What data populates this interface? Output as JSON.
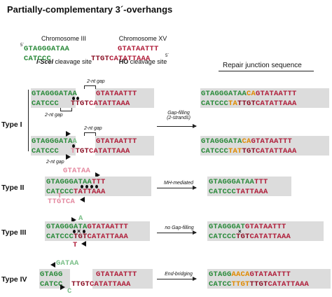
{
  "title": "Partially-complementary 3´-overhangs",
  "header": {
    "chrom3": "Chromosome III",
    "chrom3_site_name": "I-SceI",
    "chrom3_site_rest": " cleavage site",
    "chrom15": "Chromosome XV",
    "chrom15_site_name": "HO",
    "chrom15_site_rest": " cleavage site",
    "five_prime": "5´",
    "five_prime_b": "5´",
    "top_g": "GTAGGG",
    "top_gb": "ATAA",
    "top_r": "GTATAATTT",
    "bot_g": "CATCCC",
    "bot_rb": "TTGT",
    "bot_r": "CATATTAAA"
  },
  "repair_junction_label": "Repair junction sequence",
  "types": {
    "type1": "Type I",
    "type2": "Type II",
    "type3": "Type III",
    "type4": "Type IV"
  },
  "gap_labels": {
    "gap_a": "2-nt gap",
    "gap_b": "2-nt gap",
    "gap_c": "2-nt gap",
    "gap_d": "2-nt gap"
  },
  "arrows": {
    "type1": "Gap-filling\n(2-strands)",
    "type2": "MH-mediated",
    "type3": "no Gap-filling",
    "type4": "End-bridging"
  },
  "seq": {
    "t1a_top_g": "GTAGGG",
    "t1a_top_gb": "ATAA",
    "t1a_top_r": "GTATAATTT",
    "t1a_bot_g": "CATCCC",
    "t1a_bot_rb": "TTGT",
    "t1a_bot_r": "CATATTAAA",
    "t1b_top_g": "GTAGGG",
    "t1b_top_gb": "ATA",
    "t1b_top_lg": "A",
    "t1b_top_r": "GTATAATTT",
    "t1b_bot_g": "CATCCC",
    "t1b_bot_pk": "T",
    "t1b_bot_rb": "TGT",
    "t1b_bot_r": "CATATTAAA",
    "t2_over_top": "GTATA",
    "t2_over_top2": "A",
    "t2_top_g": "GTAGGG",
    "t2_top_gb": "ATAA",
    "t2_top_r": "TTT",
    "t2_bot_g": "CATCCC",
    "t2_bot_r": "TATTAAA",
    "t2_under_bot": "TTGTC",
    "t2_under_bot2": "A",
    "t2_mid_t": "T",
    "t3_top_g": "GTAGGG",
    "t3_top_gb": "ATA",
    "t3_top_lg": "A",
    "t3_top_r": "GTATAATTT",
    "t3_bot_g": "CATCCC",
    "t3_bot_rb": "TGT",
    "t3_bot_r": "CATATTAAA",
    "t3_t": "T",
    "t4_top_g": "GTAGG",
    "t4_top_lg": "GATAA",
    "t4_top_r": "GTATAATTT",
    "t4_bot_g": "CATCC",
    "t4_bot_lg": "C",
    "t4_bot_rb": "TTGT",
    "t4_bot_r": "CATATTAAA",
    "r1a_top_g": "GTAGGG",
    "r1a_top_gb": "ATAA",
    "r1a_top_o": "CA",
    "r1a_top_r": "GTATAATTT",
    "r1a_bot_g": "CATCCC",
    "r1a_bot_o": "TA",
    "r1a_bot_rb": "TTGT",
    "r1a_bot_r": "CATATTAAA",
    "r1b_top_g": "GTAGGG",
    "r1b_top_gb": "ATA",
    "r1b_top_o": "CA",
    "r1b_top_r": "GTATAATTT",
    "r1b_bot_g": "CATCCC",
    "r1b_bot_o": "TAT",
    "r1b_bot_rb": "TGT",
    "r1b_bot_r": "CATATTAAA",
    "r2_top_g": "GTAGGG",
    "r2_top_gb": "ATAA",
    "r2_top_r": "TTT",
    "r2_bot_g": "CATCCC",
    "r2_bot_r": "TATTAAA",
    "r3_top_g": "GTAGGG",
    "r3_top_gb": "AT",
    "r3_top_r": "GTATAATTT",
    "r3_bot_g": "CATCCC",
    "r3_bot_rb": "TGT",
    "r3_bot_r": "CATATTAAA",
    "r4_top_g": "GTAGG",
    "r4_top_o": "AACA",
    "r4_top_r": "GTATAATTT",
    "r4_bot_g": "CATCC",
    "r4_bot_o": "TTGT",
    "r4_bot_rb": "TTGT",
    "r4_bot_r": "CATATTAAA",
    "t3_x": "×",
    "r3_x": "×"
  },
  "colors": {
    "green": "#2a8a3a",
    "red": "#b01e3a",
    "orange": "#e08a00",
    "box": "#dcdcdc"
  }
}
